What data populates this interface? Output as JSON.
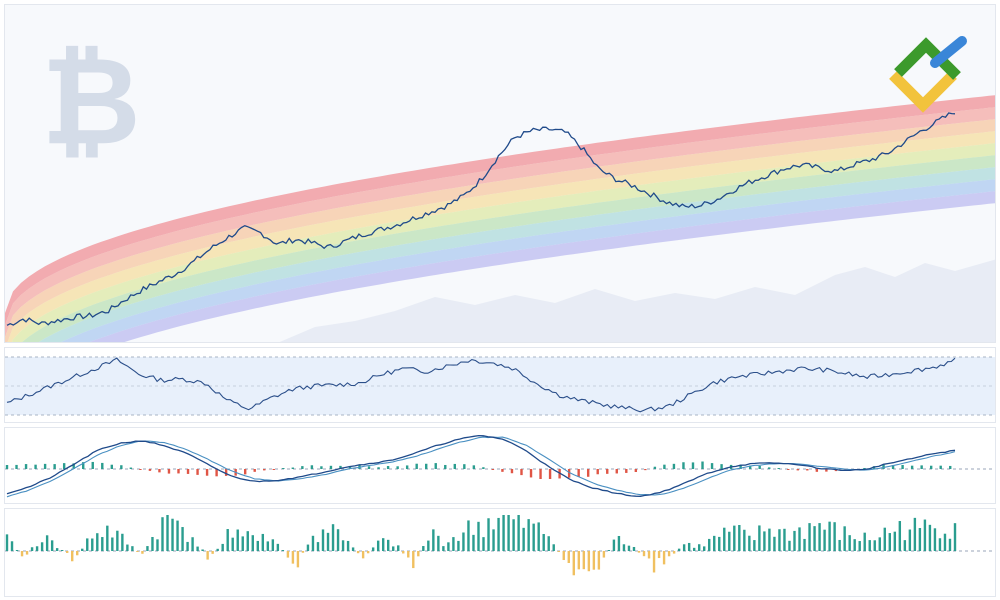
{
  "colors": {
    "background": "#f7f9fc",
    "price_line": "#1f4a8a",
    "rsi_line": "#2b4f8a",
    "rsi_band": "#e8f0fb",
    "rsi_overbought_fill": "#bfe5c4",
    "rsi_oversold_fill": "#f6dba0",
    "macd_line": "#1f4a8a",
    "signal_line": "#4a90c2",
    "hist_positive": "#2a9d8f",
    "hist_negative": "#e05545",
    "volume_positive": "#2a9d8f",
    "volume_negative": "#f0c060",
    "bitcoin_watermark": "#d4dce8",
    "mountain": "#e4e9f2",
    "rainbow_bands": [
      "#f08a90",
      "#f4a5a0",
      "#f7c49b",
      "#f5dd9a",
      "#dce8a0",
      "#b8e0b0",
      "#a8d8d8",
      "#a8c8f0",
      "#b8b8f0"
    ]
  },
  "icons": {
    "watermark": "bitcoin-icon",
    "brand": "litefinance-logo"
  },
  "chart_data": [
    {
      "type": "line",
      "panel": "price",
      "overlay": "rainbow bands",
      "series": [
        {
          "values": [
            0.06,
            0.1,
            0.07,
            0.09,
            0.11,
            0.12,
            0.15,
            0.22,
            0.28,
            0.33,
            0.38,
            0.45,
            0.53,
            0.6,
            0.66,
            0.63,
            0.56,
            0.59,
            0.57,
            0.54,
            0.58,
            0.62,
            0.65,
            0.68,
            0.72,
            0.76,
            0.8,
            0.86,
            0.96,
            1.1,
            1.22,
            1.26,
            1.27,
            1.25,
            1.15,
            1.02,
            0.96,
            0.92,
            0.87,
            0.82,
            0.79,
            0.8,
            0.84,
            0.9,
            0.95,
            0.99,
            1.03,
            1.05,
            1.03,
            1.01,
            1.05,
            1.08,
            1.12,
            1.19,
            1.26,
            1.32,
            1.38
          ]
        }
      ]
    },
    {
      "type": "line",
      "panel": "rsi",
      "series": [
        {
          "values": [
            0.2,
            0.35,
            0.5,
            0.65,
            0.8,
            0.95,
            0.7,
            0.6,
            0.62,
            0.55,
            0.25,
            0.1,
            0.3,
            0.45,
            0.5,
            0.52,
            0.55,
            0.7,
            0.8,
            0.75,
            0.85,
            0.95,
            0.9,
            0.8,
            0.55,
            0.35,
            0.25,
            0.18,
            0.12,
            0.08,
            0.15,
            0.35,
            0.55,
            0.65,
            0.7,
            0.75,
            0.8,
            0.78,
            0.72,
            0.65,
            0.7,
            0.76,
            0.82,
            0.94
          ]
        }
      ]
    },
    {
      "type": "line",
      "panel": "macd",
      "series": [
        {
          "values": [
            0.1,
            0.2,
            0.35,
            0.55,
            0.75,
            0.86,
            0.9,
            0.82,
            0.7,
            0.52,
            0.35,
            0.28,
            0.3,
            0.35,
            0.42,
            0.5,
            0.55,
            0.6,
            0.7,
            0.82,
            0.92,
            0.98,
            0.92,
            0.75,
            0.5,
            0.3,
            0.18,
            0.1,
            0.05,
            0.12,
            0.25,
            0.4,
            0.5,
            0.55,
            0.56,
            0.54,
            0.48,
            0.45,
            0.46,
            0.55,
            0.62,
            0.7,
            0.75
          ]
        },
        {
          "values": [
            0.05,
            0.15,
            0.3,
            0.48,
            0.68,
            0.82,
            0.9,
            0.87,
            0.76,
            0.6,
            0.43,
            0.32,
            0.29,
            0.32,
            0.38,
            0.46,
            0.52,
            0.57,
            0.65,
            0.76,
            0.87,
            0.95,
            0.95,
            0.83,
            0.62,
            0.4,
            0.25,
            0.15,
            0.08,
            0.08,
            0.18,
            0.32,
            0.45,
            0.52,
            0.55,
            0.55,
            0.51,
            0.47,
            0.45,
            0.5,
            0.58,
            0.66,
            0.73
          ]
        }
      ]
    },
    {
      "type": "bar",
      "panel": "volume",
      "series": [
        {
          "values": [
            0.25,
            -0.15,
            0.3,
            0.1,
            -0.2,
            0.35,
            0.45,
            0.2,
            -0.1,
            0.55,
            0.65,
            0.3,
            -0.2,
            0.35,
            0.25,
            0.4,
            0.15,
            -0.35,
            0.25,
            0.5,
            0.3,
            -0.15,
            0.2,
            0.15,
            -0.3,
            0.35,
            0.2,
            0.4,
            0.55,
            0.7,
            0.6,
            0.5,
            0.35,
            -0.25,
            -0.45,
            -0.3,
            0.25,
            0.15,
            -0.4,
            -0.2,
            0.15,
            0.1,
            0.3,
            0.4,
            0.25,
            0.5,
            0.35,
            0.45,
            0.55,
            0.4,
            0.3,
            0.25,
            0.4,
            0.5,
            0.45,
            0.55,
            0.6
          ]
        }
      ]
    }
  ]
}
